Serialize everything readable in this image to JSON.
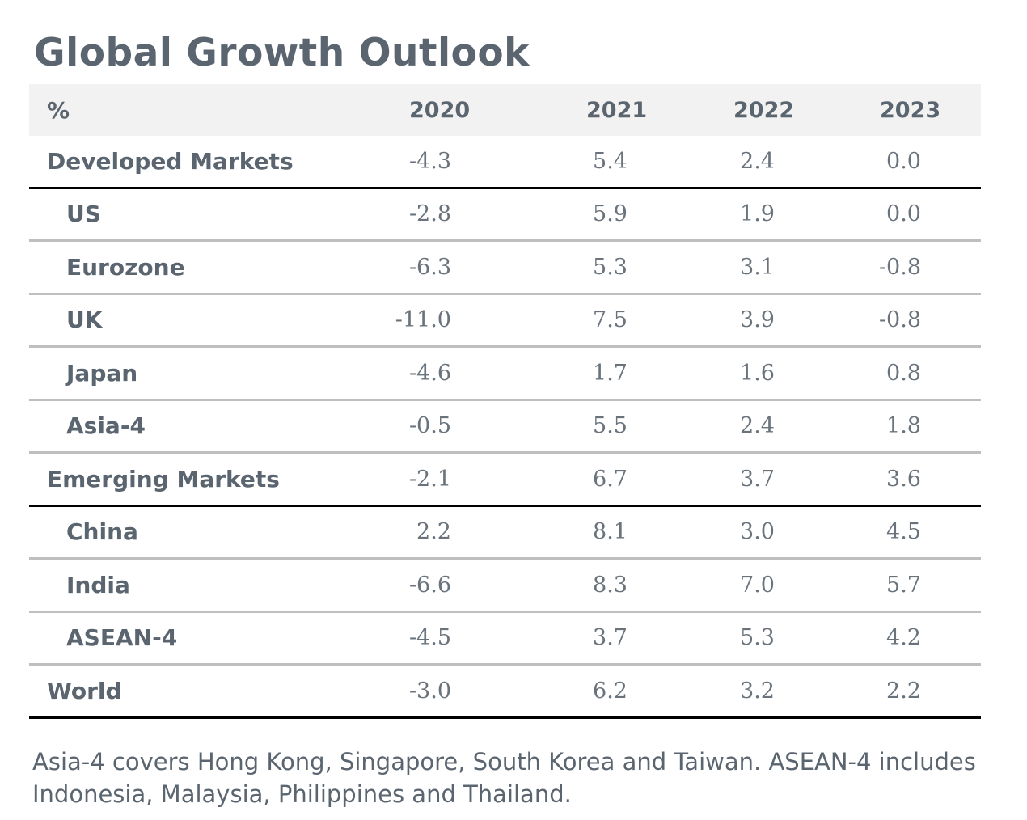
{
  "title": "Global Growth Outlook",
  "chart_data": {
    "type": "table",
    "columns": [
      "%",
      "2020",
      "2021",
      "2022",
      "2023"
    ],
    "rows": [
      {
        "label": "Developed Markets",
        "level": 0,
        "values": [
          "-4.3",
          "5.4",
          "2.4",
          "0.0"
        ]
      },
      {
        "label": "US",
        "level": 1,
        "values": [
          "-2.8",
          "5.9",
          "1.9",
          "0.0"
        ]
      },
      {
        "label": "Eurozone",
        "level": 1,
        "values": [
          "-6.3",
          "5.3",
          "3.1",
          "-0.8"
        ]
      },
      {
        "label": "UK",
        "level": 1,
        "values": [
          "-11.0",
          "7.5",
          "3.9",
          "-0.8"
        ]
      },
      {
        "label": "Japan",
        "level": 1,
        "values": [
          "-4.6",
          "1.7",
          "1.6",
          "0.8"
        ]
      },
      {
        "label": "Asia-4",
        "level": 1,
        "values": [
          "-0.5",
          "5.5",
          "2.4",
          "1.8"
        ]
      },
      {
        "label": "Emerging Markets",
        "level": 0,
        "values": [
          "-2.1",
          "6.7",
          "3.7",
          "3.6"
        ]
      },
      {
        "label": "China",
        "level": 1,
        "values": [
          "2.2",
          "8.1",
          "3.0",
          "4.5"
        ]
      },
      {
        "label": "India",
        "level": 1,
        "values": [
          "-6.6",
          "8.3",
          "7.0",
          "5.7"
        ]
      },
      {
        "label": "ASEAN-4",
        "level": 1,
        "values": [
          "-4.5",
          "3.7",
          "5.3",
          "4.2"
        ]
      },
      {
        "label": "World",
        "level": 0,
        "values": [
          "-3.0",
          "6.2",
          "3.2",
          "2.2"
        ]
      }
    ]
  },
  "footnote": "Asia-4 covers Hong Kong, Singapore, South Korea and Taiwan. ASEAN-4 includes Indonesia, Malaysia, Philippines and Thailand."
}
